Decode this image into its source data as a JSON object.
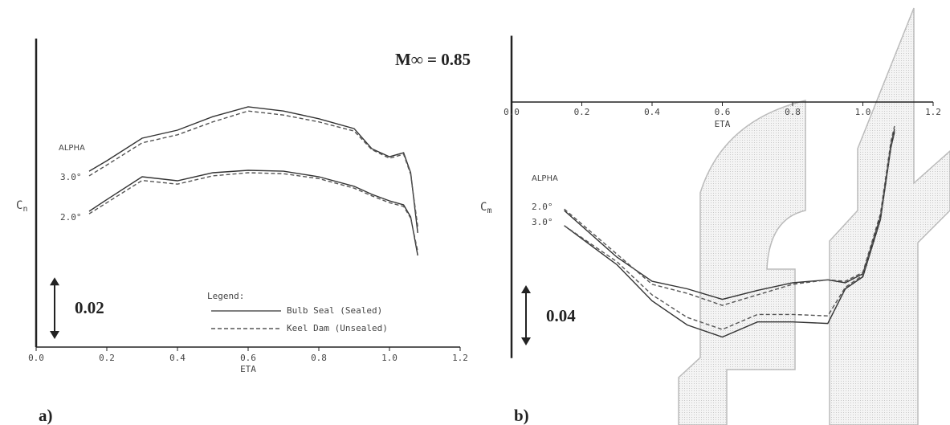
{
  "annotation": "M∞ = 0.85",
  "chart_data": [
    {
      "type": "line",
      "panel_label": "a)",
      "xlabel": "ETA",
      "ylabel": {
        "base": "C",
        "sub": "n"
      },
      "xlim": [
        0,
        1.2
      ],
      "xticks": [
        {
          "value": 0,
          "label": "0.0"
        },
        0.2,
        0.4,
        0.6,
        0.8,
        {
          "value": 1,
          "label": "1.0"
        },
        1.2
      ],
      "ylim": [
        0,
        0.1
      ],
      "scale_bar": 0.02,
      "alpha_title": "ALPHA",
      "legend_title": "Legend:",
      "legend": [
        {
          "label": "Bulb Seal (Sealed)",
          "style": "solid"
        },
        {
          "label": "Keel Dam (Unsealed)",
          "style": "dashed"
        }
      ],
      "x": [
        0.15,
        0.2,
        0.3,
        0.4,
        0.5,
        0.6,
        0.7,
        0.8,
        0.9,
        0.95,
        1.0,
        1.04,
        1.06,
        1.08
      ],
      "alphas": [
        {
          "label": "3.0°",
          "solid": [
            0.057,
            0.0604,
            0.0677,
            0.0703,
            0.0747,
            0.0779,
            0.0765,
            0.074,
            0.0708,
            0.0643,
            0.0617,
            0.063,
            0.0565,
            0.037
          ],
          "dashed": [
            0.0555,
            0.059,
            0.0662,
            0.0688,
            0.073,
            0.0765,
            0.0752,
            0.073,
            0.07,
            0.064,
            0.0612,
            0.0625,
            0.056,
            0.039
          ]
        },
        {
          "label": "2.0°",
          "solid": [
            0.044,
            0.0478,
            0.0552,
            0.0539,
            0.0565,
            0.0573,
            0.057,
            0.0552,
            0.0521,
            0.0495,
            0.0474,
            0.0461,
            0.0422,
            0.0297
          ],
          "dashed": [
            0.0432,
            0.0468,
            0.054,
            0.0528,
            0.0555,
            0.0565,
            0.0562,
            0.0546,
            0.0515,
            0.049,
            0.0468,
            0.0456,
            0.0418,
            0.031
          ]
        }
      ]
    },
    {
      "type": "line",
      "panel_label": "b)",
      "xlabel": "ETA",
      "ylabel": {
        "base": "C",
        "sub": "m"
      },
      "xlim": [
        0,
        1.2
      ],
      "xticks": [
        {
          "value": 0,
          "label": "0.0"
        },
        0.2,
        0.4,
        0.6,
        0.8,
        {
          "value": 1,
          "label": "1.0"
        },
        1.2
      ],
      "ylim": [
        -0.17,
        0.044
      ],
      "scale_bar": 0.04,
      "alpha_title": "ALPHA",
      "x": [
        0.15,
        0.3,
        0.4,
        0.5,
        0.6,
        0.7,
        0.8,
        0.9,
        0.95,
        1.0,
        1.05,
        1.08,
        1.09
      ],
      "alphas": [
        {
          "label": "2.0°",
          "solid": [
            -0.072,
            -0.103,
            -0.119,
            -0.124,
            -0.131,
            -0.125,
            -0.12,
            -0.118,
            -0.12,
            -0.114,
            -0.076,
            -0.028,
            -0.018
          ],
          "dashed": [
            -0.071,
            -0.101,
            -0.121,
            -0.127,
            -0.135,
            -0.128,
            -0.121,
            -0.118,
            -0.119,
            -0.113,
            -0.074,
            -0.026,
            -0.016
          ]
        },
        {
          "label": "3.0°",
          "solid": [
            -0.082,
            -0.108,
            -0.132,
            -0.148,
            -0.156,
            -0.146,
            -0.146,
            -0.147,
            -0.124,
            -0.116,
            -0.078,
            -0.03,
            -0.02
          ],
          "dashed": [
            -0.082,
            -0.106,
            -0.128,
            -0.143,
            -0.151,
            -0.141,
            -0.141,
            -0.142,
            -0.123,
            -0.115,
            -0.077,
            -0.029,
            -0.019
          ]
        }
      ]
    }
  ]
}
